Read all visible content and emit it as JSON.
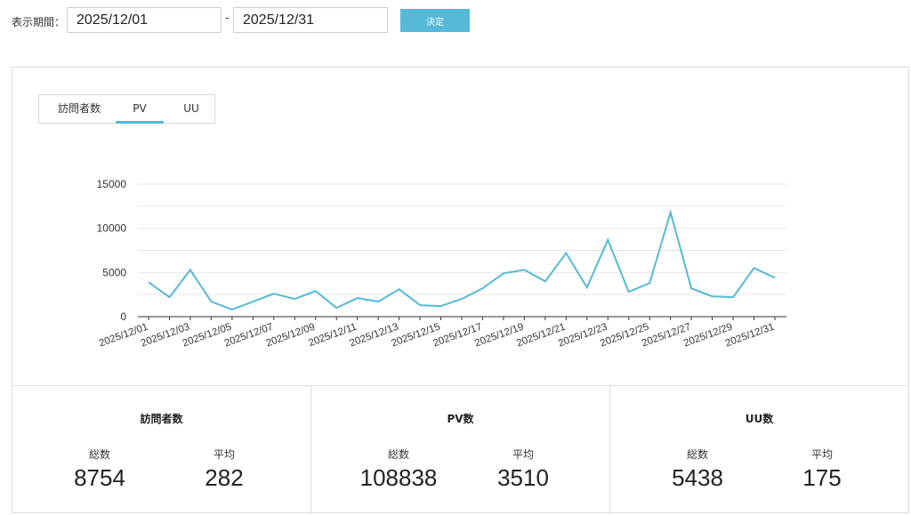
{
  "filter": {
    "period_label": "表示期間：",
    "start_date": "2025/12/01",
    "separator": "-",
    "end_date": "2025/12/31",
    "submit_label": "決定"
  },
  "tabs": [
    {
      "label": "訪問者数",
      "active": false
    },
    {
      "label": "PV",
      "active": true
    },
    {
      "label": "UU",
      "active": false
    }
  ],
  "colors": {
    "accent": "#56b9d7",
    "grid": "#e6e6e6",
    "axis": "#333333"
  },
  "chart_data": {
    "type": "line",
    "title": "",
    "xlabel": "",
    "ylabel": "",
    "ylim": [
      0,
      15000
    ],
    "yticks": [
      0,
      5000,
      10000,
      15000
    ],
    "grid": true,
    "x": [
      "2025/12/01",
      "2025/12/02",
      "2025/12/03",
      "2025/12/04",
      "2025/12/05",
      "2025/12/06",
      "2025/12/07",
      "2025/12/08",
      "2025/12/09",
      "2025/12/10",
      "2025/12/11",
      "2025/12/12",
      "2025/12/13",
      "2025/12/14",
      "2025/12/15",
      "2025/12/16",
      "2025/12/17",
      "2025/12/18",
      "2025/12/19",
      "2025/12/20",
      "2025/12/21",
      "2025/12/22",
      "2025/12/23",
      "2025/12/24",
      "2025/12/25",
      "2025/12/26",
      "2025/12/27",
      "2025/12/28",
      "2025/12/29",
      "2025/12/30",
      "2025/12/31"
    ],
    "xtick_labels": [
      "2025/12/01",
      "2025/12/03",
      "2025/12/05",
      "2025/12/07",
      "2025/12/09",
      "2025/12/11",
      "2025/12/13",
      "2025/12/15",
      "2025/12/17",
      "2025/12/19",
      "2025/12/21",
      "2025/12/23",
      "2025/12/25",
      "2025/12/27",
      "2025/12/29",
      "2025/12/31"
    ],
    "series": [
      {
        "values": [
          3900,
          2200,
          5300,
          1700,
          800,
          1700,
          2600,
          2000,
          2900,
          1000,
          2100,
          1700,
          3100,
          1300,
          1200,
          2000,
          3200,
          4900,
          5300,
          4000,
          7200,
          3300,
          8700,
          2800,
          3800,
          11800,
          3200,
          2300,
          2200,
          5500,
          4400
        ]
      }
    ]
  },
  "stats": [
    {
      "title": "訪問者数",
      "total_label": "総数",
      "total": "8754",
      "avg_label": "平均",
      "avg": "282"
    },
    {
      "title": "PV数",
      "total_label": "総数",
      "total": "108838",
      "avg_label": "平均",
      "avg": "3510"
    },
    {
      "title": "UU数",
      "total_label": "総数",
      "total": "5438",
      "avg_label": "平均",
      "avg": "175"
    }
  ]
}
